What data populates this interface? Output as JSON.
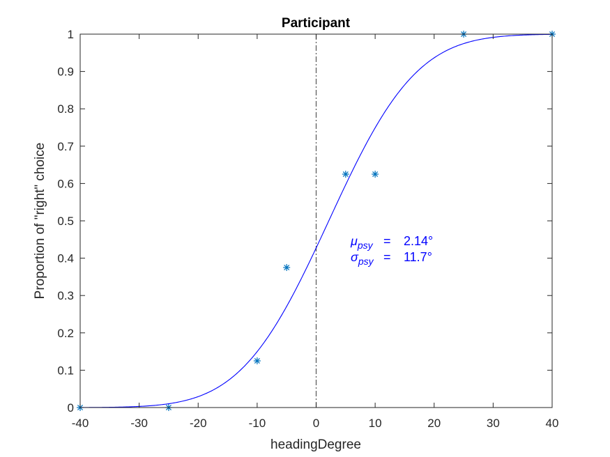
{
  "chart_data": {
    "type": "scatter",
    "title": "Participant",
    "xlabel": "headingDegree",
    "ylabel": "Proportion of \"right\" choice",
    "xlim": [
      -40,
      40
    ],
    "ylim": [
      0,
      1
    ],
    "xticks": [
      -40,
      -30,
      -20,
      -10,
      0,
      10,
      20,
      30,
      40
    ],
    "yticks": [
      0,
      0.1,
      0.2,
      0.3,
      0.4,
      0.5,
      0.6,
      0.7,
      0.8,
      0.9,
      1
    ],
    "xtick_labels": [
      "-40",
      "-30",
      "-20",
      "-10",
      "0",
      "10",
      "20",
      "30",
      "40"
    ],
    "ytick_labels": [
      "0",
      "0.1",
      "0.2",
      "0.3",
      "0.4",
      "0.5",
      "0.6",
      "0.7",
      "0.8",
      "0.9",
      "1"
    ],
    "grid": false,
    "series": [
      {
        "kind": "points",
        "marker": "asterisk",
        "color": "#0072BD",
        "x": [
          -40,
          -25,
          -10,
          -5,
          5,
          10,
          25,
          40
        ],
        "y": [
          0,
          0,
          0.125,
          0.375,
          0.625,
          0.625,
          1,
          1
        ]
      },
      {
        "kind": "fit",
        "function": "cumulative-normal",
        "color": "#0000FF",
        "mu": 2.14,
        "sigma": 11.7
      }
    ],
    "reference_line": {
      "x": 0,
      "style": "dash-dot",
      "color": "#555555"
    },
    "annotation": {
      "color": "#0000FF",
      "mu_symbol": "μ",
      "sigma_symbol": "σ",
      "subscript": "psy",
      "equals": "=",
      "mu_value": "2.14°",
      "sigma_value": "11.7°"
    }
  }
}
